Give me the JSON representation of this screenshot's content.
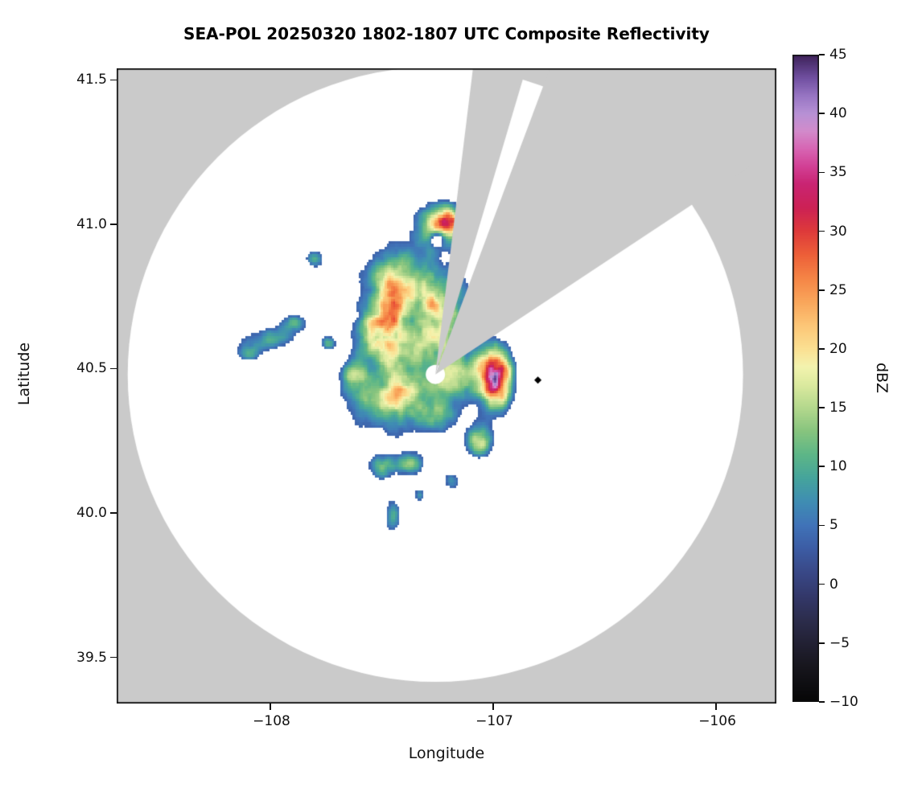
{
  "chart_data": {
    "type": "heatmap",
    "title": "SEA-POL 20250320 1802-1807 UTC Composite Reflectivity",
    "xlabel": "Longitude",
    "ylabel": "Latitude",
    "colorbar_label": "dBZ",
    "xlim": [
      -108.69,
      -105.73
    ],
    "ylim": [
      39.34,
      41.54
    ],
    "grid": false,
    "legend": "colorbar-right",
    "xticks": [
      {
        "value": -108,
        "label": "−108"
      },
      {
        "value": -107,
        "label": "−107"
      },
      {
        "value": -106,
        "label": "−106"
      }
    ],
    "yticks": [
      {
        "value": 39.5,
        "label": "39.5"
      },
      {
        "value": 40.0,
        "label": "40.0"
      },
      {
        "value": 40.5,
        "label": "40.5"
      },
      {
        "value": 41.0,
        "label": "41.0"
      },
      {
        "value": 41.5,
        "label": "41.5"
      }
    ],
    "colorbar": {
      "min": -10,
      "max": 45,
      "ticks": [
        {
          "value": 45,
          "label": "45"
        },
        {
          "value": 40,
          "label": "40"
        },
        {
          "value": 35,
          "label": "35"
        },
        {
          "value": 30,
          "label": "30"
        },
        {
          "value": 25,
          "label": "25"
        },
        {
          "value": 20,
          "label": "20"
        },
        {
          "value": 15,
          "label": "15"
        },
        {
          "value": 10,
          "label": "10"
        },
        {
          "value": 5,
          "label": "5"
        },
        {
          "value": 0,
          "label": "0"
        },
        {
          "value": -5,
          "label": "−5"
        },
        {
          "value": -10,
          "label": "−10"
        }
      ]
    },
    "colors": {
      "nodata": "#cacaca",
      "coverage": "#ffffff",
      "frame": "#111111",
      "text": "#111111"
    },
    "radar": {
      "lon": -107.26,
      "lat": 40.48,
      "range_deg_lat": 1.065,
      "hole_radius_px": 11
    },
    "blocked_sectors_az_deg": [
      [
        7,
        16.5
      ],
      [
        20.5,
        56.5
      ]
    ],
    "marker": {
      "lon": -106.8,
      "lat": 40.46,
      "symbol": "diamond",
      "color": "#000000",
      "half_size_px": 3.2
    },
    "colormap_stops": [
      [
        -10,
        "#060606"
      ],
      [
        -7,
        "#17161d"
      ],
      [
        -5,
        "#222134"
      ],
      [
        -3,
        "#2c2d4d"
      ],
      [
        -1,
        "#33386a"
      ],
      [
        1,
        "#394887"
      ],
      [
        3,
        "#3c5ca4"
      ],
      [
        5,
        "#4073b8"
      ],
      [
        7,
        "#3f8db3"
      ],
      [
        9,
        "#45a49c"
      ],
      [
        11,
        "#5db687"
      ],
      [
        13,
        "#87c47e"
      ],
      [
        15,
        "#b4d88d"
      ],
      [
        17,
        "#dcea9f"
      ],
      [
        18.5,
        "#f3f3ae"
      ],
      [
        20,
        "#fbe092"
      ],
      [
        22,
        "#fcc677"
      ],
      [
        24,
        "#f9a65b"
      ],
      [
        26,
        "#f58546"
      ],
      [
        28,
        "#ed5f38"
      ],
      [
        30,
        "#de3a3a"
      ],
      [
        32,
        "#cc2155"
      ],
      [
        34,
        "#c92472"
      ],
      [
        35.5,
        "#d24095"
      ],
      [
        37,
        "#d765b3"
      ],
      [
        38.5,
        "#d28bcb"
      ],
      [
        40,
        "#b791d5"
      ],
      [
        41.5,
        "#9775c3"
      ],
      [
        43,
        "#7150a1"
      ],
      [
        45,
        "#3c2158"
      ]
    ],
    "echo_blobs": [
      [
        -107.22,
        41.0,
        0.09,
        0.055,
        22
      ],
      [
        -107.2,
        41.02,
        0.035,
        0.03,
        9
      ],
      [
        -107.25,
        40.95,
        0.022,
        0.018,
        -14
      ],
      [
        -107.42,
        40.78,
        0.13,
        0.1,
        18
      ],
      [
        -107.47,
        40.7,
        0.045,
        0.11,
        14
      ],
      [
        -107.22,
        40.72,
        0.09,
        0.08,
        16
      ],
      [
        -107.55,
        40.62,
        0.06,
        0.05,
        14
      ],
      [
        -107.32,
        40.58,
        0.14,
        0.06,
        13
      ],
      [
        -108.02,
        40.6,
        0.1,
        0.03,
        13
      ],
      [
        -107.9,
        40.66,
        0.05,
        0.025,
        12
      ],
      [
        -108.1,
        40.55,
        0.04,
        0.02,
        11
      ],
      [
        -107.8,
        40.88,
        0.03,
        0.022,
        13
      ],
      [
        -107.74,
        40.59,
        0.025,
        0.02,
        12
      ],
      [
        -107.45,
        40.4,
        0.15,
        0.1,
        17
      ],
      [
        -107.41,
        40.41,
        0.05,
        0.04,
        10
      ],
      [
        -107.25,
        40.34,
        0.06,
        0.045,
        11
      ],
      [
        -107.15,
        40.47,
        0.08,
        0.06,
        16
      ],
      [
        -106.99,
        40.47,
        0.055,
        0.075,
        36
      ],
      [
        -107.06,
        40.25,
        0.045,
        0.04,
        20
      ],
      [
        -107.5,
        40.16,
        0.05,
        0.035,
        14
      ],
      [
        -107.37,
        40.17,
        0.045,
        0.03,
        13
      ],
      [
        -107.19,
        40.11,
        0.03,
        0.025,
        12
      ],
      [
        -107.45,
        39.99,
        0.028,
        0.045,
        14
      ],
      [
        -107.33,
        40.06,
        0.02,
        0.02,
        11
      ],
      [
        -107.62,
        40.47,
        0.045,
        0.04,
        13
      ]
    ],
    "noise": {
      "seed": 7,
      "freq": 18,
      "base": 0.7,
      "amp": 0.7,
      "offset_dbz": -4,
      "min_draw_dbz": 3.5,
      "grid_per_deg": 110
    }
  }
}
